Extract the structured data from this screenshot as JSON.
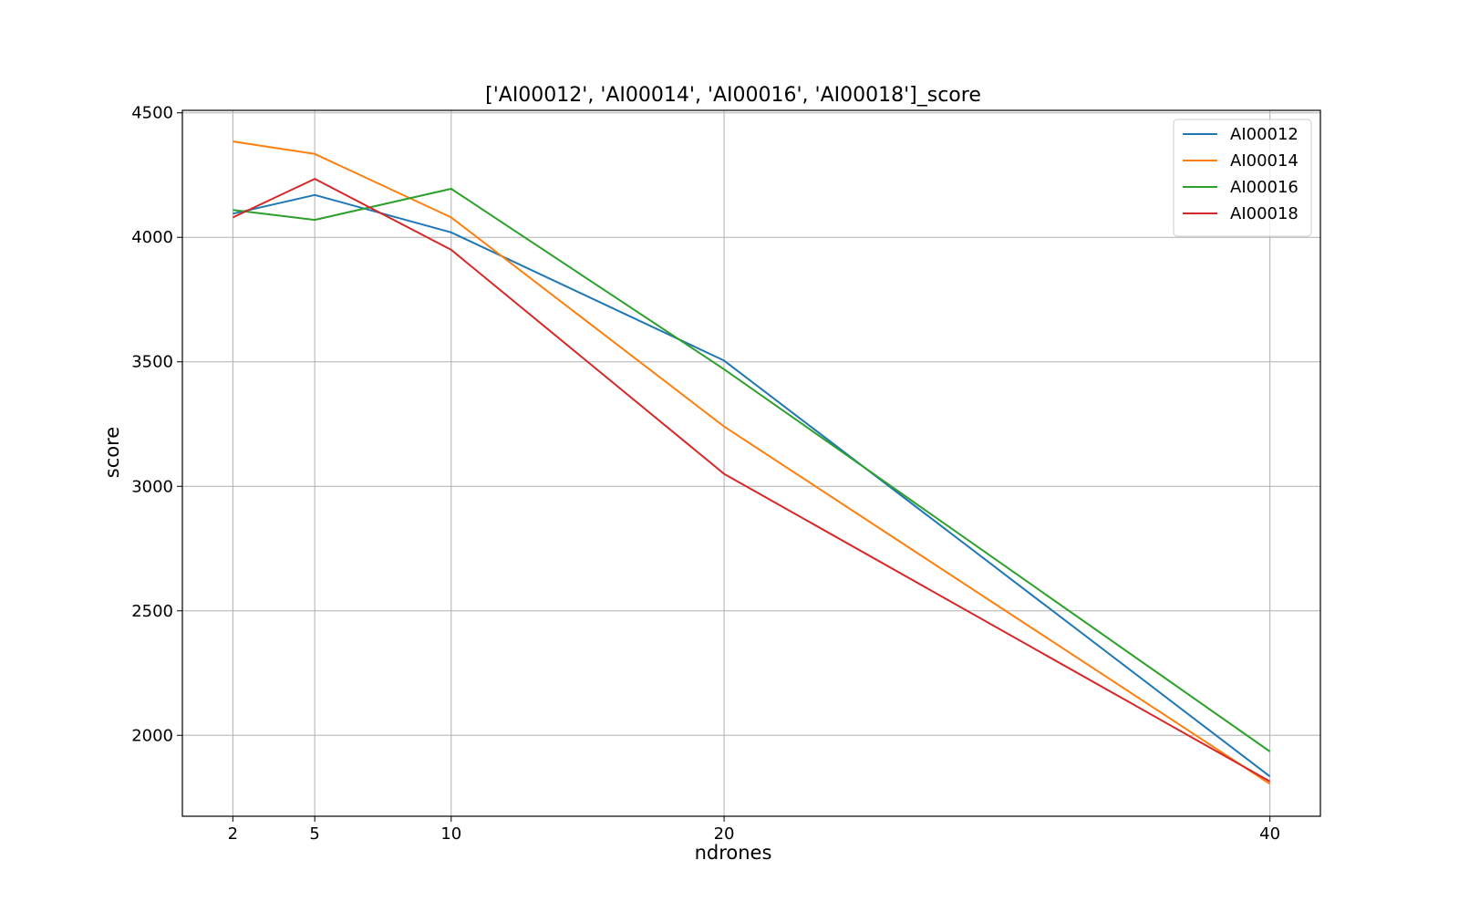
{
  "chart_data": {
    "type": "line",
    "title": "['AI00012', 'AI00014', 'AI00016', 'AI00018']_score",
    "xlabel": "ndrones",
    "ylabel": "score",
    "x": [
      2,
      5,
      10,
      20,
      40
    ],
    "xticks": [
      2,
      5,
      10,
      20,
      40
    ],
    "yticks": [
      2000,
      2500,
      3000,
      3500,
      4000,
      4500
    ],
    "xlim": [
      0.15,
      41.85
    ],
    "ylim": [
      1675,
      4510
    ],
    "grid": true,
    "legend_position": "top-right",
    "series": [
      {
        "name": "AI00012",
        "color": "#1f77b4",
        "values": [
          4095,
          4170,
          4020,
          3505,
          1835
        ]
      },
      {
        "name": "AI00014",
        "color": "#ff7f0e",
        "values": [
          4385,
          4335,
          4080,
          3240,
          1805
        ]
      },
      {
        "name": "AI00016",
        "color": "#2ca02c",
        "values": [
          4110,
          4070,
          4195,
          3470,
          1935
        ]
      },
      {
        "name": "AI00018",
        "color": "#d62728",
        "values": [
          4080,
          4235,
          3950,
          3050,
          1815
        ]
      }
    ]
  }
}
